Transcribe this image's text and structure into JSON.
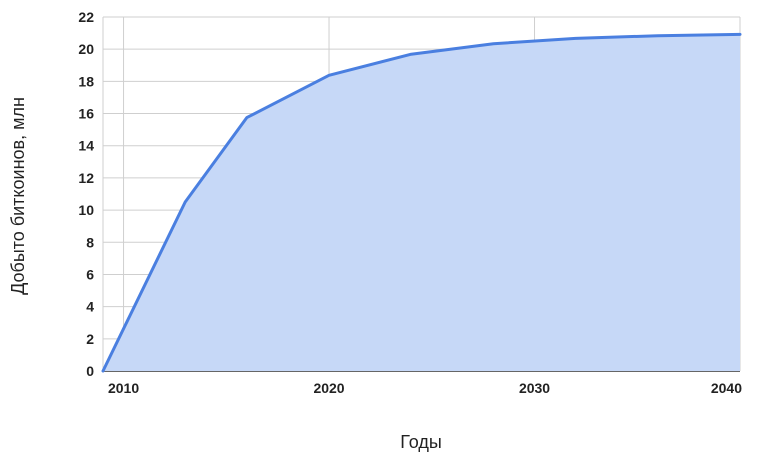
{
  "chart_data": {
    "type": "area",
    "title": "",
    "xlabel": "Годы",
    "ylabel": "Добыто биткоинов, млн",
    "xlim": [
      2009,
      2040
    ],
    "ylim": [
      0,
      22
    ],
    "x_ticks": [
      2010,
      2020,
      2030,
      2040
    ],
    "y_ticks": [
      0,
      2,
      4,
      6,
      8,
      10,
      12,
      14,
      16,
      18,
      20,
      22
    ],
    "grid": true,
    "legend": "none",
    "series": [
      {
        "x": [
          2009,
          2013,
          2016,
          2020,
          2024,
          2028,
          2032,
          2036,
          2040
        ],
        "values": [
          0,
          10.5,
          15.75,
          18.375,
          19.6875,
          20.34,
          20.67,
          20.84,
          20.92
        ],
        "line_color": "#4a7fe0",
        "fill_color": "#c6d8f7"
      }
    ]
  }
}
